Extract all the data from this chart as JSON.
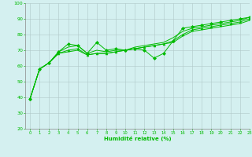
{
  "title": "",
  "xlabel": "Humidité relative (%)",
  "ylabel": "",
  "bg_color": "#d4f0f0",
  "grid_color": "#b0c8c8",
  "line_color": "#00bb00",
  "marker_color": "#00bb00",
  "xlim": [
    -0.5,
    23
  ],
  "ylim": [
    20,
    100
  ],
  "yticks": [
    20,
    30,
    40,
    50,
    60,
    70,
    80,
    90,
    100
  ],
  "xticks": [
    0,
    1,
    2,
    3,
    4,
    5,
    6,
    7,
    8,
    9,
    10,
    11,
    12,
    13,
    14,
    15,
    16,
    17,
    18,
    19,
    20,
    21,
    22,
    23
  ],
  "series": [
    [
      39,
      58,
      62,
      69,
      74,
      73,
      68,
      75,
      70,
      71,
      70,
      71,
      70,
      65,
      68,
      76,
      84,
      85,
      86,
      87,
      88,
      89,
      90,
      91
    ],
    [
      39,
      58,
      62,
      69,
      72,
      73,
      68,
      70,
      69,
      70,
      70,
      72,
      73,
      74,
      75,
      78,
      82,
      84,
      85,
      86,
      87,
      88,
      89,
      91
    ],
    [
      39,
      58,
      62,
      68,
      70,
      71,
      67,
      68,
      68,
      69,
      70,
      71,
      72,
      73,
      74,
      76,
      80,
      83,
      84,
      85,
      86,
      87,
      88,
      90
    ],
    [
      39,
      58,
      62,
      68,
      69,
      70,
      67,
      68,
      68,
      69,
      70,
      71,
      72,
      73,
      74,
      75,
      79,
      82,
      83,
      84,
      85,
      86,
      87,
      89
    ]
  ],
  "marker_series": [
    0,
    2
  ],
  "marker_styles": [
    "D",
    "^"
  ]
}
